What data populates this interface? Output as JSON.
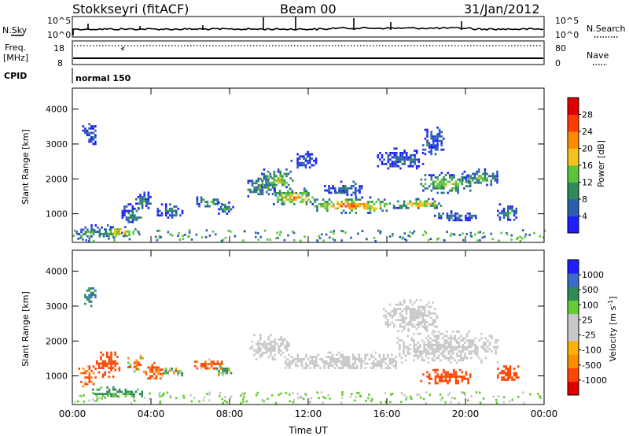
{
  "header": {
    "station": "Stokkseyri (fitACF)",
    "beam": "Beam 00",
    "date": "31/Jan/2012"
  },
  "nsky_panel": {
    "label": "N.Sky",
    "right_label": "N.Search",
    "left_ticks": [
      "10^5",
      "10^0"
    ],
    "right_ticks": [
      "10^5",
      "10^0"
    ]
  },
  "freq_panel": {
    "label_line1": "Freq.",
    "label_line2": "[MHz]",
    "right_label": "Nave",
    "left_ticks": [
      "18",
      "8"
    ],
    "right_ticks": [
      "80",
      "0"
    ]
  },
  "cpid_panel": {
    "label": "CPID",
    "mode": "normal 150"
  },
  "colors": {
    "power": [
      "#1e1eff",
      "#2a5fb0",
      "#2e8b57",
      "#5cc43a",
      "#f5c21b",
      "#ff8a00",
      "#ff3a00",
      "#e00000"
    ],
    "velocity": [
      "#e00000",
      "#ff4500",
      "#ff8c00",
      "#ffb000",
      "#c8c8c8",
      "#c8c8c8",
      "#66cc33",
      "#2e8b57",
      "#3c6cc8",
      "#1e1eff"
    ],
    "velocity_gray": "#c8c8c8"
  },
  "chart_data": [
    {
      "type": "heatmap",
      "name": "power",
      "ylabel": "Slant Range [km]",
      "colorbar_label": "Power [dB]",
      "colorbar_ticks": [
        "28",
        "24",
        "20",
        "16",
        "12",
        "8",
        "4"
      ],
      "x_ticks": [
        "00:00",
        "04:00",
        "08:00",
        "12:00",
        "16:00",
        "20:00",
        "00:00"
      ],
      "y_ticks": [
        "1000",
        "2000",
        "3000",
        "4000"
      ],
      "x_range_hours": [
        0,
        24
      ],
      "y_range_km": [
        180,
        4600
      ],
      "regions": [
        {
          "t0": 0.2,
          "t1": 2.0,
          "r0": 300,
          "r1": 700,
          "pow": 10
        },
        {
          "t0": 1.6,
          "t1": 3.2,
          "r0": 350,
          "r1": 650,
          "pow": 22
        },
        {
          "t0": 2.5,
          "t1": 3.5,
          "r0": 700,
          "r1": 1300,
          "pow": 8
        },
        {
          "t0": 3.2,
          "t1": 4.0,
          "r0": 1100,
          "r1": 1700,
          "pow": 8
        },
        {
          "t0": 4.3,
          "t1": 5.6,
          "r0": 900,
          "r1": 1300,
          "pow": 9
        },
        {
          "t0": 6.2,
          "t1": 7.6,
          "r0": 1200,
          "r1": 1500,
          "pow": 10
        },
        {
          "t0": 7.3,
          "t1": 8.2,
          "r0": 1000,
          "r1": 1350,
          "pow": 10
        },
        {
          "t0": 8.9,
          "t1": 10.3,
          "r0": 1500,
          "r1": 2100,
          "pow": 12
        },
        {
          "t0": 9.6,
          "t1": 11.2,
          "r0": 1700,
          "r1": 2300,
          "pow": 15
        },
        {
          "t0": 10.2,
          "t1": 12.3,
          "r0": 1250,
          "r1": 1750,
          "pow": 20
        },
        {
          "t0": 12.3,
          "t1": 16.0,
          "r0": 1050,
          "r1": 1500,
          "pow": 22
        },
        {
          "t0": 16.0,
          "t1": 19.0,
          "r0": 1150,
          "r1": 1450,
          "pow": 17
        },
        {
          "t0": 12.8,
          "t1": 14.8,
          "r0": 1500,
          "r1": 1950,
          "pow": 6
        },
        {
          "t0": 17.7,
          "t1": 20.3,
          "r0": 1600,
          "r1": 2200,
          "pow": 14
        },
        {
          "t0": 19.8,
          "t1": 21.6,
          "r0": 1800,
          "r1": 2300,
          "pow": 12
        },
        {
          "t0": 15.5,
          "t1": 17.8,
          "r0": 2300,
          "r1": 2900,
          "pow": 6
        },
        {
          "t0": 17.8,
          "t1": 18.9,
          "r0": 2700,
          "r1": 3500,
          "pow": 6
        },
        {
          "t0": 11.1,
          "t1": 12.4,
          "r0": 2300,
          "r1": 2800,
          "pow": 5
        },
        {
          "t0": 18.4,
          "t1": 20.6,
          "r0": 800,
          "r1": 1100,
          "pow": 8
        },
        {
          "t0": 21.6,
          "t1": 22.6,
          "r0": 800,
          "r1": 1300,
          "pow": 9
        },
        {
          "t0": 0.5,
          "t1": 1.2,
          "r0": 3000,
          "r1": 3600,
          "pow": 6
        }
      ]
    },
    {
      "type": "heatmap",
      "name": "velocity",
      "ylabel": "Slant Range [km]",
      "colorbar_label": "Velocity [m s^-1]",
      "colorbar_ticks": [
        "1000",
        "500",
        "100",
        "25",
        "-25",
        "-100",
        "-500",
        "-1000"
      ],
      "x_ticks": [
        "00:00",
        "04:00",
        "08:00",
        "12:00",
        "16:00",
        "20:00",
        "00:00"
      ],
      "xlabel": "Time UT",
      "y_ticks": [
        "1000",
        "2000",
        "3000",
        "4000"
      ],
      "x_range_hours": [
        0,
        24
      ],
      "y_range_km": [
        180,
        4600
      ],
      "regions": [
        {
          "t0": 1.0,
          "t1": 3.6,
          "r0": 400,
          "r1": 700,
          "vel": 200
        },
        {
          "t0": 0.3,
          "t1": 1.2,
          "r0": 700,
          "r1": 1300,
          "vel": -150
        },
        {
          "t0": 1.2,
          "t1": 2.4,
          "r0": 1000,
          "r1": 1700,
          "vel": -300
        },
        {
          "t0": 2.8,
          "t1": 3.6,
          "r0": 1100,
          "r1": 1600,
          "vel": -80
        },
        {
          "t0": 3.6,
          "t1": 4.6,
          "r0": 900,
          "r1": 1400,
          "vel": -150
        },
        {
          "t0": 4.6,
          "t1": 5.6,
          "r0": 1000,
          "r1": 1300,
          "vel": 60
        },
        {
          "t0": 6.2,
          "t1": 7.6,
          "r0": 1200,
          "r1": 1500,
          "vel": -150
        },
        {
          "t0": 7.3,
          "t1": 8.1,
          "r0": 1000,
          "r1": 1300,
          "vel": 60
        },
        {
          "t0": 9.0,
          "t1": 11.0,
          "r0": 1500,
          "r1": 2200,
          "vel": 0
        },
        {
          "t0": 10.8,
          "t1": 16.5,
          "r0": 1200,
          "r1": 1700,
          "vel": 0
        },
        {
          "t0": 16.5,
          "t1": 21.6,
          "r0": 1400,
          "r1": 2300,
          "vel": 0
        },
        {
          "t0": 15.8,
          "t1": 18.6,
          "r0": 2300,
          "r1": 3200,
          "vel": 0
        },
        {
          "t0": 17.7,
          "t1": 20.3,
          "r0": 800,
          "r1": 1200,
          "vel": -250
        },
        {
          "t0": 21.6,
          "t1": 22.7,
          "r0": 800,
          "r1": 1300,
          "vel": -300
        },
        {
          "t0": 0.5,
          "t1": 1.2,
          "r0": 3000,
          "r1": 3600,
          "vel": 500
        }
      ]
    }
  ]
}
